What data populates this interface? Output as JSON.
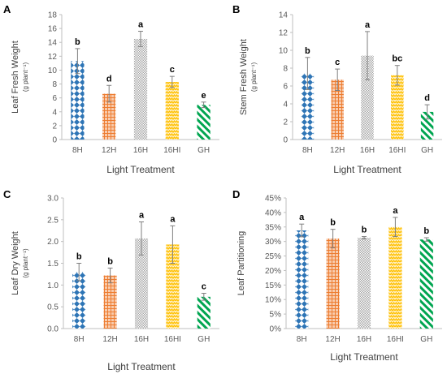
{
  "figure": {
    "chart_data": [
      {
        "type": "bar",
        "panel": "A",
        "categories": [
          "8H",
          "12H",
          "16H",
          "16HI",
          "GH"
        ],
        "values": [
          11.3,
          6.6,
          14.5,
          8.3,
          5.0
        ],
        "errors": [
          1.8,
          1.2,
          1.1,
          0.8,
          0.4
        ],
        "significance": [
          "b",
          "d",
          "a",
          "c",
          "e"
        ],
        "xlabel": "Light Treatment",
        "ylabel": "Leaf Fresh Weight",
        "ylabel_unit": "(g plant⁻¹)",
        "ylim": [
          0,
          18
        ],
        "yticks": [
          0,
          2,
          4,
          6,
          8,
          10,
          12,
          14,
          16,
          18
        ],
        "ytick_labels": [
          "0",
          "2",
          "4",
          "6",
          "8",
          "10",
          "12",
          "14",
          "16",
          "18"
        ],
        "grid": false
      },
      {
        "type": "bar",
        "panel": "B",
        "categories": [
          "8H",
          "12H",
          "16H",
          "16HI",
          "GH"
        ],
        "values": [
          7.4,
          6.7,
          9.4,
          7.2,
          3.1
        ],
        "errors": [
          1.8,
          1.2,
          2.7,
          1.1,
          0.8
        ],
        "significance": [
          "b",
          "c",
          "a",
          "bc",
          "d"
        ],
        "xlabel": "Light Treatment",
        "ylabel": "Stem Fresh Weight",
        "ylabel_unit": "(g plant⁻¹)",
        "ylim": [
          0,
          14
        ],
        "yticks": [
          0,
          2,
          4,
          6,
          8,
          10,
          12,
          14
        ],
        "ytick_labels": [
          "0",
          "2",
          "4",
          "6",
          "8",
          "10",
          "12",
          "14"
        ],
        "grid": false
      },
      {
        "type": "bar",
        "panel": "C",
        "categories": [
          "8H",
          "12H",
          "16H",
          "16HI",
          "GH"
        ],
        "values": [
          1.3,
          1.22,
          2.07,
          1.93,
          0.73
        ],
        "errors": [
          0.2,
          0.17,
          0.38,
          0.43,
          0.08
        ],
        "significance": [
          "b",
          "b",
          "a",
          "a",
          "c"
        ],
        "xlabel": "Light Treatment",
        "ylabel": "Leaf Dry Weight",
        "ylabel_unit": "(g plant⁻¹)",
        "ylim": [
          0,
          3.0
        ],
        "yticks": [
          0,
          0.5,
          1.0,
          1.5,
          2.0,
          2.5,
          3.0
        ],
        "ytick_labels": [
          "0.0",
          "0.5",
          "1.0",
          "1.5",
          "2.0",
          "2.5",
          "3.0"
        ],
        "grid": false
      },
      {
        "type": "bar",
        "panel": "D",
        "categories": [
          "8H",
          "12H",
          "16H",
          "16HI",
          "GH"
        ],
        "values": [
          33.8,
          31.0,
          31.3,
          35.0,
          30.7
        ],
        "errors": [
          2.2,
          3.2,
          0.4,
          3.3,
          0.6
        ],
        "significance": [
          "a",
          "b",
          "b",
          "a",
          "b"
        ],
        "xlabel": "Light Treatment",
        "ylabel": "Leaf Partitioning",
        "ylabel_unit": "",
        "ylim": [
          0,
          45
        ],
        "yticks": [
          0,
          5,
          10,
          15,
          20,
          25,
          30,
          35,
          40,
          45
        ],
        "ytick_labels": [
          "0%",
          "5%",
          "10%",
          "15%",
          "20%",
          "25%",
          "30%",
          "35%",
          "40%",
          "45%"
        ],
        "grid": false
      }
    ],
    "series_colors": {
      "8H": "#2E75B6",
      "12H": "#ED7D31",
      "16H": "#A5A5A5",
      "16HI": "#FFC000",
      "GH": "#00A550"
    },
    "series_patterns": {
      "8H": "diamond-checker",
      "12H": "grid",
      "16H": "fine-check",
      "16HI": "zigzag",
      "GH": "wide-diagonal"
    }
  }
}
